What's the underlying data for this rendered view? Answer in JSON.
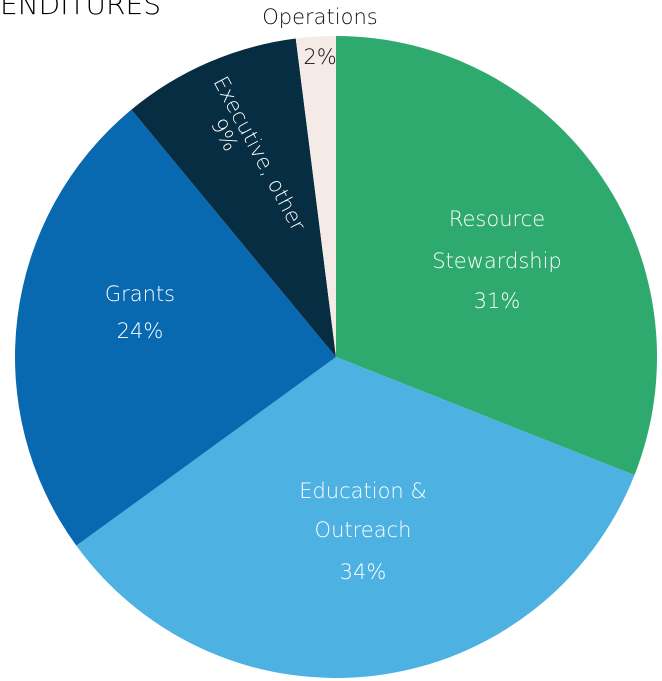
{
  "chart_data": {
    "type": "pie",
    "title": "ENDITURES",
    "categories": [
      [
        "Resource",
        "Stewardship"
      ],
      [
        "Education &",
        "Outreach"
      ],
      [
        "Grants"
      ],
      [
        "Executive, other"
      ],
      [
        "Operations"
      ]
    ],
    "values": [
      31,
      34,
      24,
      9,
      2
    ],
    "value_labels": [
      "31%",
      "34%",
      "24%",
      "9%",
      "2%"
    ],
    "colors": [
      "#2eaa6e",
      "#4db1e2",
      "#0868b0",
      "#062d42",
      "#f5ebe6"
    ]
  }
}
